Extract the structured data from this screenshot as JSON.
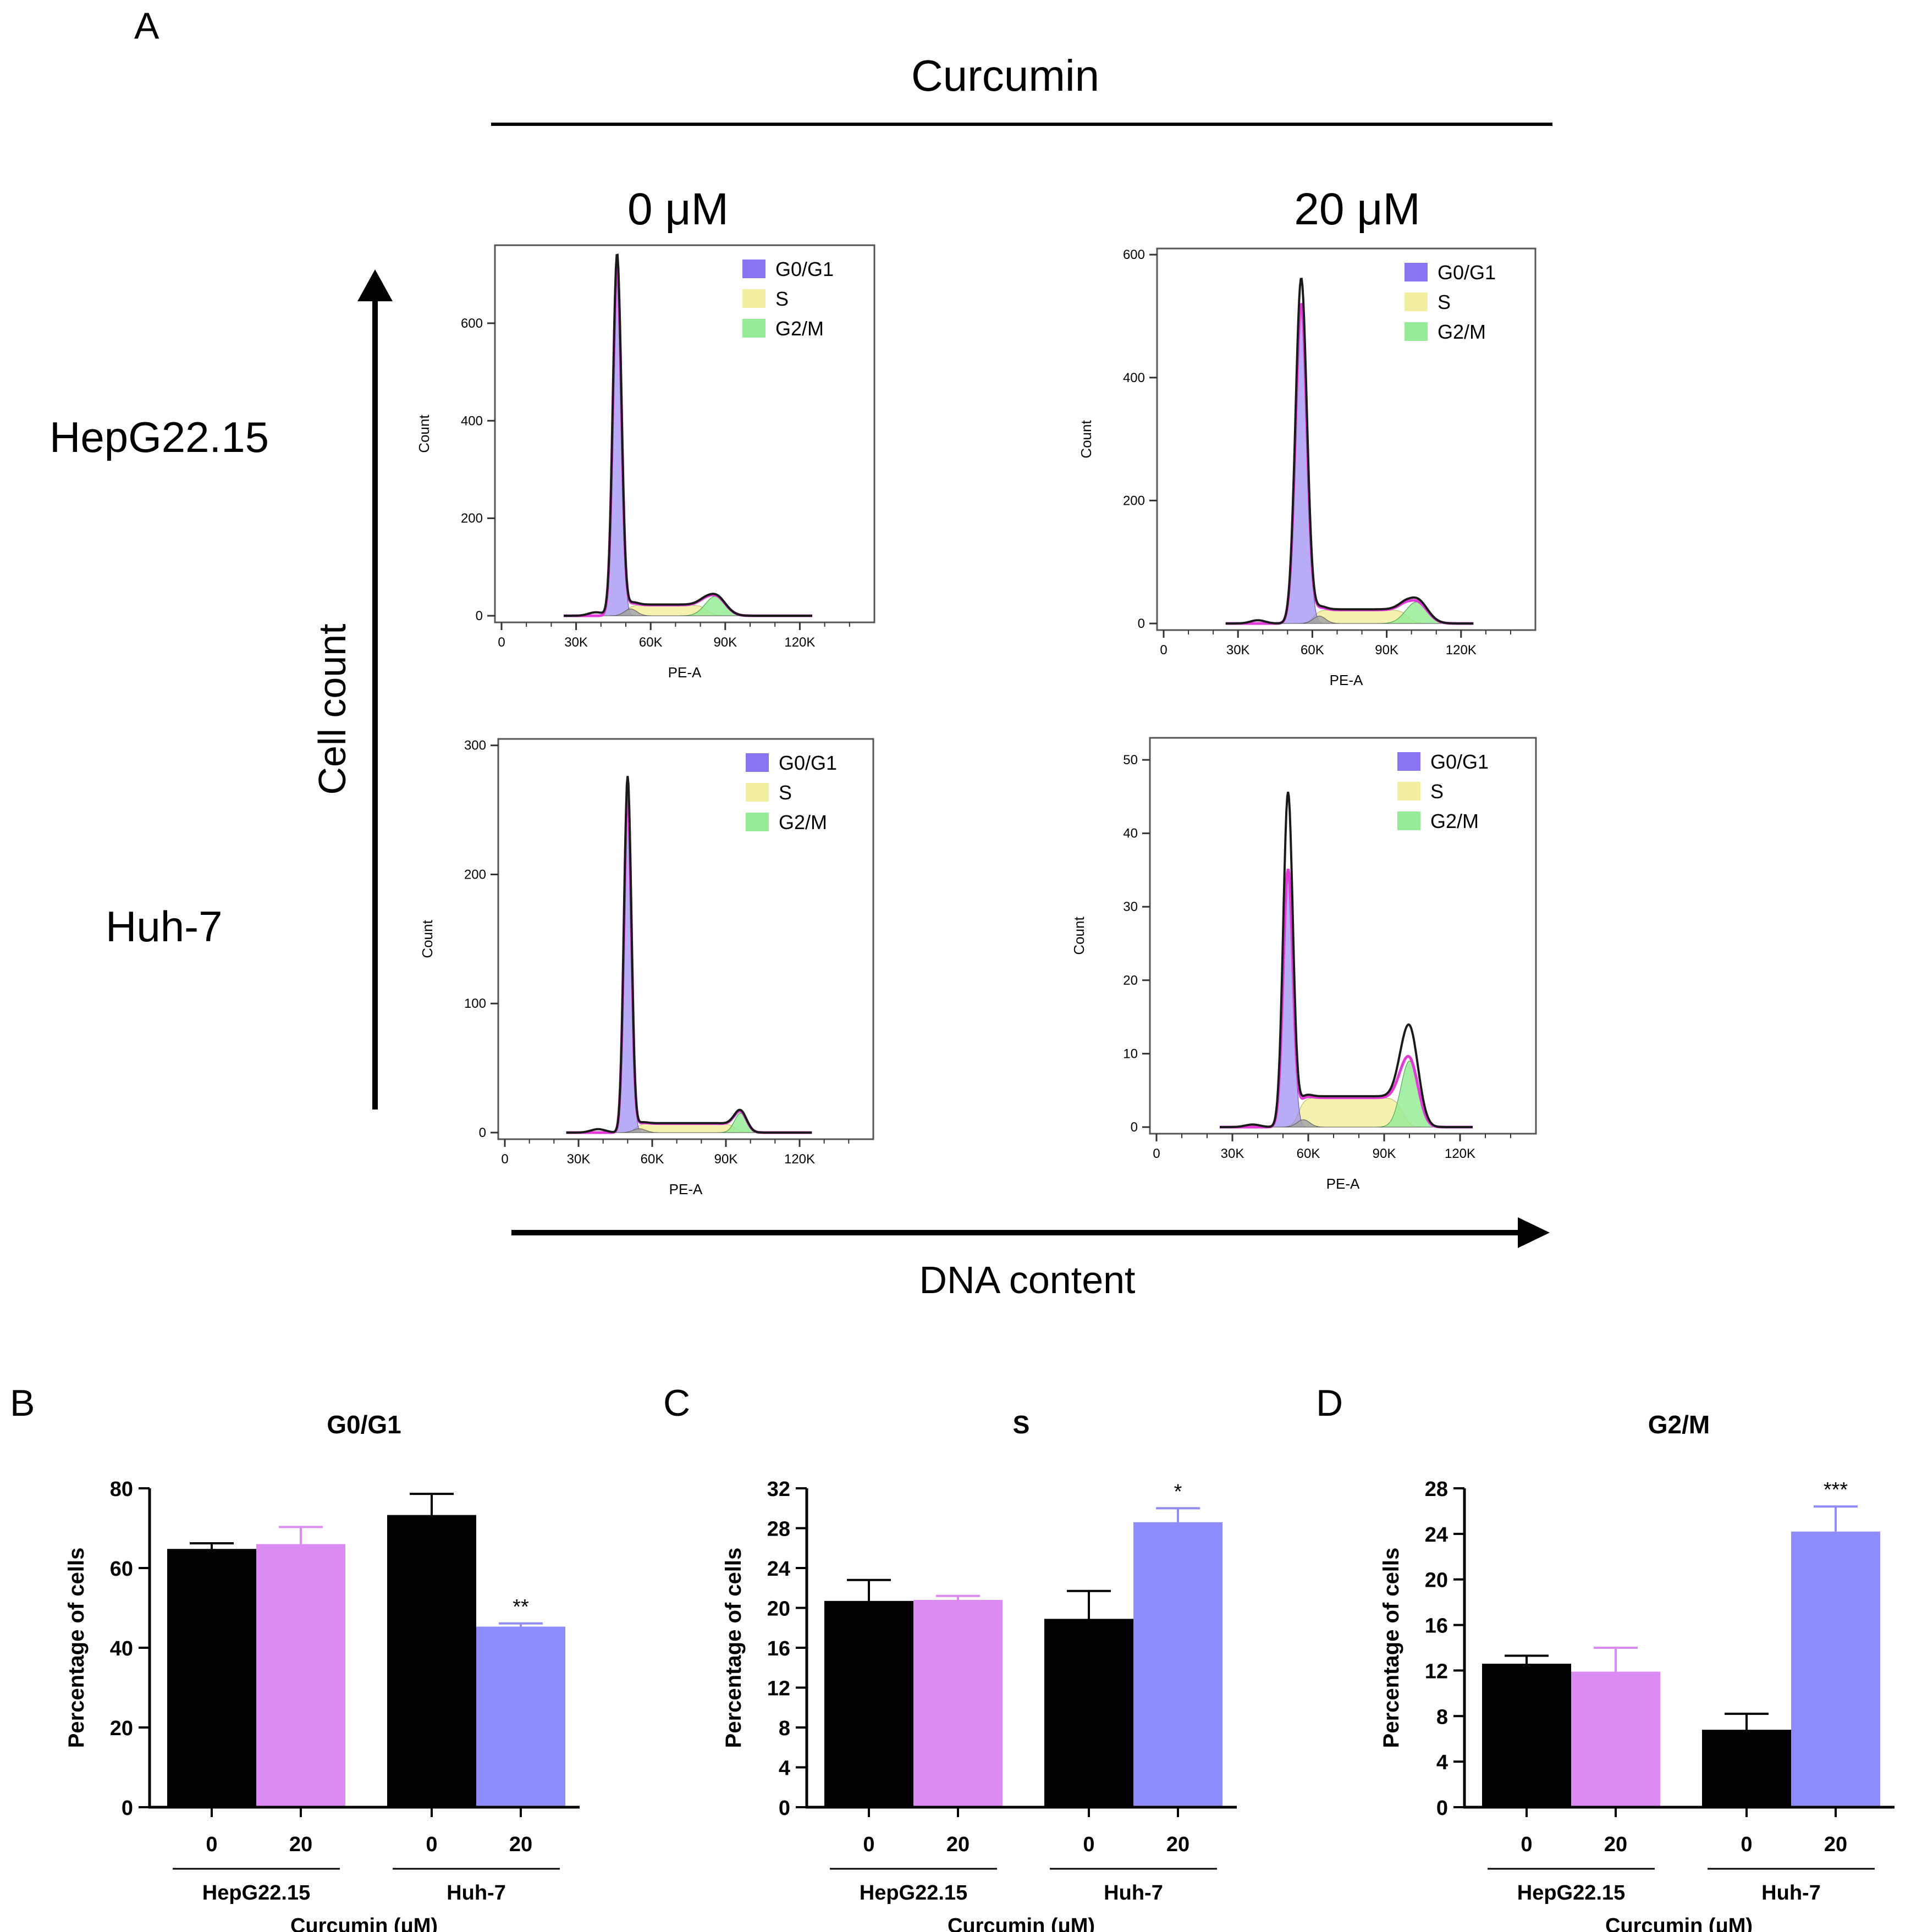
{
  "panel_letters": {
    "a": "A",
    "b": "B",
    "c": "C",
    "d": "D"
  },
  "header": {
    "treatment": "Curcumin",
    "dose_0": "0 μM",
    "dose_20": "20 μM"
  },
  "row_labels": {
    "hep": "HepG22.15",
    "huh": "Huh-7"
  },
  "axis_arrows": {
    "y": "Cell count",
    "x": "DNA content"
  },
  "legend": {
    "g0g1": "G0/G1",
    "s": "S",
    "g2m": "G2/M"
  },
  "colors": {
    "g0g1": "#8b74f0",
    "s": "#f2f0a0",
    "g2m": "#96ec96",
    "debris": "#a4a4a4",
    "fit": "#e23ad8",
    "hep20_bar": "#dc8af4",
    "huh20_bar": "#8e8cfe",
    "bar_black": "#000000"
  },
  "chart_data": [
    {
      "id": "hep-0",
      "type": "area",
      "title": "HepG22.15 0 μM",
      "xlabel": "PE-A",
      "ylabel": "Count",
      "xlim": [
        0,
        150000
      ],
      "ylim": [
        0,
        760
      ],
      "yticks": [
        0,
        200,
        400,
        600
      ],
      "xticks": [
        0,
        30000,
        60000,
        90000,
        120000
      ],
      "xticklabels": [
        "0",
        "30K",
        "60K",
        "90K",
        "120K"
      ],
      "peaks": {
        "g1_center": 46500,
        "g1_height": 720,
        "g1_sigma": 1700,
        "g2_center": 86000,
        "g2_height": 40,
        "g2_sigma": 4000,
        "s_height": 22,
        "sub_g1": 14,
        "raw_scale": 1.03
      }
    },
    {
      "id": "hep-20",
      "type": "area",
      "title": "HepG22.15 20 μM",
      "xlabel": "PE-A",
      "ylabel": "Count",
      "xlim": [
        0,
        150000
      ],
      "ylim": [
        0,
        610
      ],
      "yticks": [
        0,
        200,
        400,
        600
      ],
      "xticks": [
        0,
        30000,
        60000,
        90000,
        120000
      ],
      "xticklabels": [
        "0",
        "30K",
        "60K",
        "90K",
        "120K"
      ],
      "peaks": {
        "g1_center": 55500,
        "g1_height": 520,
        "g1_sigma": 2300,
        "g2_center": 102000,
        "g2_height": 35,
        "g2_sigma": 4300,
        "s_height": 22,
        "sub_g1": 12,
        "raw_scale": 1.08
      }
    },
    {
      "id": "huh-0",
      "type": "area",
      "title": "Huh-7 0 μM",
      "xlabel": "PE-A",
      "ylabel": "Count",
      "xlim": [
        0,
        150000
      ],
      "ylim": [
        0,
        305
      ],
      "yticks": [
        0,
        100,
        200,
        300
      ],
      "xticks": [
        0,
        30000,
        60000,
        90000,
        120000
      ],
      "xticklabels": [
        "0",
        "30K",
        "60K",
        "90K",
        "120K"
      ],
      "peaks": {
        "g1_center": 50000,
        "g1_height": 265,
        "g1_sigma": 1500,
        "g2_center": 96000,
        "g2_height": 15,
        "g2_sigma": 2500,
        "s_height": 7,
        "sub_g1": 3,
        "raw_scale": 1.04
      }
    },
    {
      "id": "huh-20",
      "type": "area",
      "title": "Huh-7 20 μM",
      "xlabel": "PE-A",
      "ylabel": "Count",
      "xlim": [
        0,
        150000
      ],
      "ylim": [
        0,
        53
      ],
      "yticks": [
        0,
        10,
        20,
        30,
        40,
        50
      ],
      "xticks": [
        0,
        30000,
        60000,
        90000,
        120000
      ],
      "xticklabels": [
        "0",
        "30K",
        "60K",
        "90K",
        "120K"
      ],
      "peaks": {
        "g1_center": 52000,
        "g1_height": 35,
        "g1_sigma": 1900,
        "g2_center": 100000,
        "g2_height": 9,
        "g2_sigma": 3400,
        "s_height": 4,
        "sub_g1": 1,
        "raw_scale": 1.3
      }
    },
    {
      "id": "bar-g0g1",
      "type": "bar",
      "title": "G0/G1",
      "ylabel": "Percentage of cells",
      "xlabel": "Curcumin (μM)",
      "ylim": [
        0,
        80
      ],
      "yticks": [
        0,
        20,
        40,
        60,
        80
      ],
      "categories": [
        "0",
        "20",
        "0",
        "20"
      ],
      "groups": [
        "HepG22.15",
        "Huh-7"
      ],
      "values": [
        64.8,
        66.0,
        73.3,
        45.3
      ],
      "errors": [
        1.4,
        4.3,
        5.3,
        0.8
      ],
      "sig": [
        "",
        "",
        "",
        "**"
      ],
      "bar_colors": [
        "#000000",
        "#dc8af4",
        "#000000",
        "#8e8cfe"
      ]
    },
    {
      "id": "bar-s",
      "type": "bar",
      "title": "S",
      "ylabel": "Percentage of cells",
      "xlabel": "Curcumin (μM)",
      "ylim": [
        0,
        32
      ],
      "yticks": [
        0,
        4,
        8,
        12,
        16,
        20,
        24,
        28,
        32
      ],
      "categories": [
        "0",
        "20",
        "0",
        "20"
      ],
      "groups": [
        "HepG22.15",
        "Huh-7"
      ],
      "values": [
        20.7,
        20.8,
        18.9,
        28.6
      ],
      "errors": [
        2.1,
        0.4,
        2.8,
        1.4
      ],
      "sig": [
        "",
        "",
        "",
        "*"
      ],
      "bar_colors": [
        "#000000",
        "#dc8af4",
        "#000000",
        "#8e8cfe"
      ]
    },
    {
      "id": "bar-g2m",
      "type": "bar",
      "title": "G2/M",
      "ylabel": "Percentage of cells",
      "xlabel": "Curcumin (μM)",
      "ylim": [
        0,
        28
      ],
      "yticks": [
        0,
        4,
        8,
        12,
        16,
        20,
        24,
        28
      ],
      "categories": [
        "0",
        "20",
        "0",
        "20"
      ],
      "groups": [
        "HepG22.15",
        "Huh-7"
      ],
      "values": [
        12.6,
        11.9,
        6.8,
        24.2
      ],
      "errors": [
        0.7,
        2.1,
        1.4,
        2.2
      ],
      "sig": [
        "",
        "",
        "",
        "***"
      ],
      "bar_colors": [
        "#000000",
        "#dc8af4",
        "#000000",
        "#8e8cfe"
      ]
    }
  ]
}
